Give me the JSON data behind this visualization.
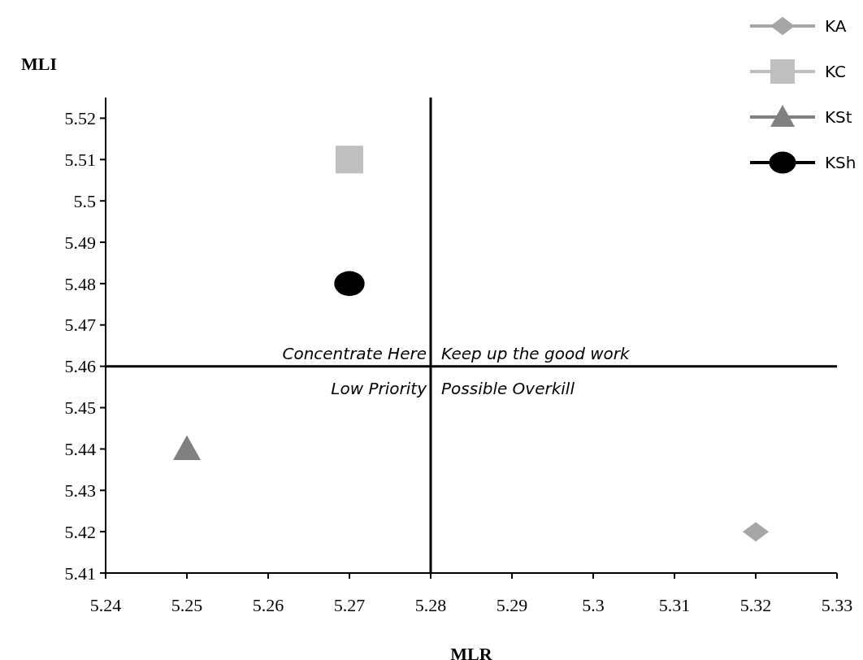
{
  "chart_data": {
    "type": "scatter",
    "xlabel": "MLR",
    "ylabel": "MLI",
    "xlim": [
      5.24,
      5.33
    ],
    "xticks": [
      5.24,
      5.25,
      5.26,
      5.27,
      5.28,
      5.29,
      5.3,
      5.31,
      5.32,
      5.33
    ],
    "ylim": [
      5.41,
      5.525
    ],
    "yticks": [
      5.41,
      5.42,
      5.43,
      5.44,
      5.45,
      5.46,
      5.47,
      5.48,
      5.49,
      5.5,
      5.51,
      5.52
    ],
    "grid": false,
    "legend": "top right",
    "series": [
      {
        "name": "KA",
        "color": "#a6a6a6",
        "marker": "diamond",
        "x": [
          5.32
        ],
        "values": [
          5.42
        ]
      },
      {
        "name": "KC",
        "color": "#bfbfbf",
        "marker": "square",
        "x": [
          5.27
        ],
        "values": [
          5.51
        ]
      },
      {
        "name": "KSt",
        "color": "#808080",
        "marker": "triangle",
        "x": [
          5.25
        ],
        "values": [
          5.44
        ]
      },
      {
        "name": "KSh",
        "color": "#000000",
        "marker": "circle",
        "x": [
          5.27
        ],
        "values": [
          5.48
        ]
      }
    ],
    "ref_lines": [
      {
        "axis": "x",
        "value": 5.28,
        "color": "#000000"
      },
      {
        "axis": "y",
        "value": 5.46,
        "color": "#000000"
      }
    ],
    "annotations": [
      "Concentrate Here",
      "Keep up the good work",
      "Low Priority",
      "Possible Overkill"
    ]
  }
}
